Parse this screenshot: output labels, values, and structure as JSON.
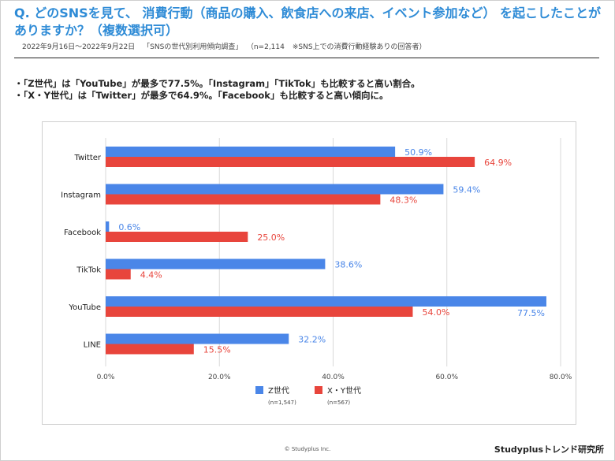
{
  "title": "Q. どのSNSを見て、 消費行動（商品の購入、飲食店への来店、イベント参加など） を起こしたことがありますか？（複数選択可）",
  "survey_info": {
    "period": "2022年9月16日〜2022年9月22日",
    "survey_name": "「SNSの世代別利用傾向調査」",
    "sample": "（n=2,114",
    "note": "※SNS上での消費行動経験ありの回答者）"
  },
  "bullets": [
    "・「Z世代」は「YouTube」が最多で77.5%。「Instagram」「TikTok」も比較すると高い割合。",
    "・「X・Y世代」は「Twitter」が最多で64.9%。「Facebook」も比較すると高い傾向に。"
  ],
  "chart_data": {
    "type": "bar",
    "orientation": "horizontal",
    "categories": [
      "Twitter",
      "Instagram",
      "Facebook",
      "TikTok",
      "YouTube",
      "LINE"
    ],
    "series": [
      {
        "name": "Z世代",
        "sample": "(n=1,547)",
        "color": "#4a86e8",
        "values": [
          50.9,
          59.4,
          0.6,
          38.6,
          77.5,
          32.2
        ],
        "labels": [
          "50.9%",
          "59.4%",
          "0.6%",
          "38.6%",
          "77.5%",
          "32.2%"
        ]
      },
      {
        "name": "X・Y世代",
        "sample": "(n=567)",
        "color": "#e8453c",
        "values": [
          64.9,
          48.3,
          25.0,
          4.4,
          54.0,
          15.5
        ],
        "labels": [
          "64.9%",
          "48.3%",
          "25.0%",
          "4.4%",
          "54.0%",
          "15.5%"
        ]
      }
    ],
    "xlim": [
      0,
      80
    ],
    "xticks": [
      0,
      20,
      40,
      60,
      80
    ],
    "xtick_labels": [
      "0.0%",
      "20.0%",
      "40.0%",
      "60.0%",
      "80.0%"
    ],
    "grid": true,
    "legend": "bottom"
  },
  "footer": {
    "copyright": "© Studyplus Inc.",
    "brand": "Studyplusトレンド研究所"
  }
}
